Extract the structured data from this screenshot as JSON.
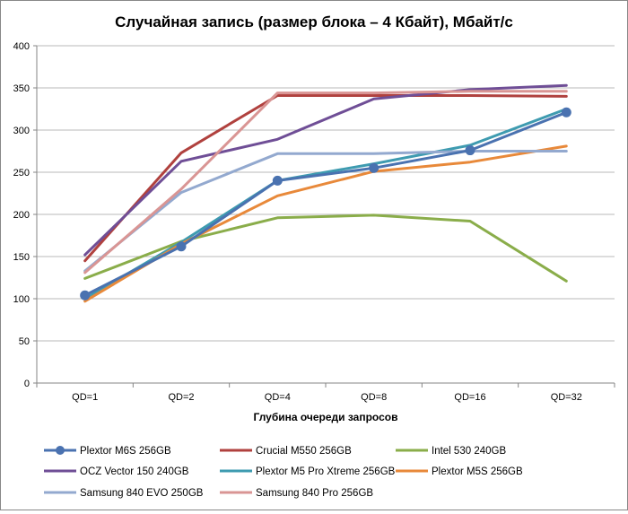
{
  "chart_data": {
    "type": "line",
    "title": "Случайная запись (размер блока – 4 Кбайт), Мбайт/с",
    "xlabel": "Глубина очереди запросов",
    "ylabel": "",
    "categories": [
      "QD=1",
      "QD=2",
      "QD=4",
      "QD=8",
      "QD=16",
      "QD=32"
    ],
    "ylim": [
      0,
      400
    ],
    "yticks": [
      0,
      50,
      100,
      150,
      200,
      250,
      300,
      350,
      400
    ],
    "grid": true,
    "legend_position": "bottom",
    "series": [
      {
        "name": "Plextor M6S 256GB",
        "color": "#4a72b0",
        "markers": true,
        "values": [
          104,
          162,
          240,
          255,
          276,
          321
        ]
      },
      {
        "name": "Crucial M550 256GB",
        "color": "#b0413e",
        "markers": false,
        "values": [
          145,
          273,
          341,
          341,
          341,
          340
        ]
      },
      {
        "name": "Intel 530 240GB",
        "color": "#8aad4a",
        "markers": false,
        "values": [
          124,
          168,
          196,
          199,
          192,
          121
        ]
      },
      {
        "name": "OCZ Vector 150 240GB",
        "color": "#6f4e96",
        "markers": false,
        "values": [
          152,
          263,
          289,
          337,
          348,
          353
        ]
      },
      {
        "name": "Plextor M5 Pro Xtreme 256GB",
        "color": "#3e9bb0",
        "markers": false,
        "values": [
          100,
          167,
          240,
          260,
          282,
          325
        ]
      },
      {
        "name": "Plextor M5S 256GB",
        "color": "#e8893a",
        "markers": false,
        "values": [
          97,
          165,
          222,
          251,
          262,
          281
        ]
      },
      {
        "name": "Samsung 840 EVO 250GB",
        "color": "#93a9cf",
        "markers": false,
        "values": [
          133,
          226,
          272,
          272,
          275,
          275
        ]
      },
      {
        "name": "Samsung 840 Pro 256GB",
        "color": "#d99594",
        "markers": false,
        "values": [
          131,
          230,
          344,
          344,
          346,
          346
        ]
      }
    ]
  }
}
